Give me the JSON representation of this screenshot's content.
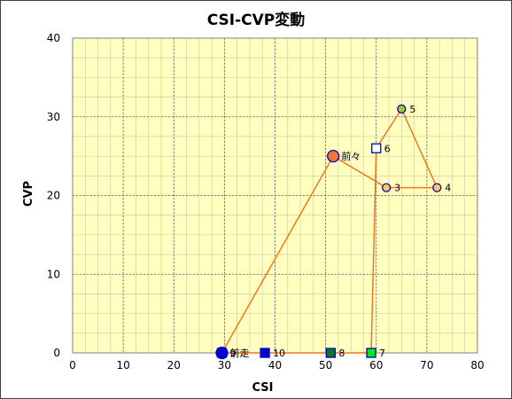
{
  "chart_data": {
    "type": "scatter",
    "title": "CSI-CVP変動",
    "xlabel": "CSI",
    "ylabel": "CVP",
    "xlim": [
      0,
      80
    ],
    "ylim": [
      0,
      40
    ],
    "x_ticks": [
      0,
      10,
      20,
      30,
      40,
      50,
      60,
      70,
      80
    ],
    "y_ticks": [
      0,
      10,
      20,
      30,
      40
    ],
    "x_minor_step": 2.5,
    "y_minor_step": 2.5,
    "grid": true,
    "plot_background": "#ffffc0",
    "line_color": "#f07820",
    "points": [
      {
        "label": "前走",
        "x": 29.5,
        "y": 0,
        "marker": "circle-large",
        "fill": "#0000cc",
        "edge": "#0000cc"
      },
      {
        "label": "前々",
        "x": 51.5,
        "y": 25,
        "marker": "circle-large",
        "fill": "#f07830",
        "edge": "#0000cc"
      },
      {
        "label": "3",
        "x": 62,
        "y": 21,
        "marker": "circle",
        "fill": "#ffc850",
        "edge": "#0000cc"
      },
      {
        "label": "4",
        "x": 72,
        "y": 21,
        "marker": "circle",
        "fill": "#ffc850",
        "edge": "#0000cc"
      },
      {
        "label": "5",
        "x": 65,
        "y": 31,
        "marker": "circle",
        "fill": "#99cc33",
        "edge": "#0000cc"
      },
      {
        "label": "6",
        "x": 60,
        "y": 26,
        "marker": "square",
        "fill": "#ffffff",
        "edge": "#0000cc"
      },
      {
        "label": "7",
        "x": 59,
        "y": 0,
        "marker": "square",
        "fill": "#00ee00",
        "edge": "#0000cc"
      },
      {
        "label": "8",
        "x": 51,
        "y": 0,
        "marker": "square",
        "fill": "#008000",
        "edge": "#0000cc"
      },
      {
        "label": "9",
        "x": 29.5,
        "y": 0,
        "marker": "square",
        "fill": "#0000cc",
        "edge": "#0000cc"
      },
      {
        "label": "10",
        "x": 38,
        "y": 0,
        "marker": "square",
        "fill": "#0000cc",
        "edge": "#0000cc"
      }
    ]
  }
}
